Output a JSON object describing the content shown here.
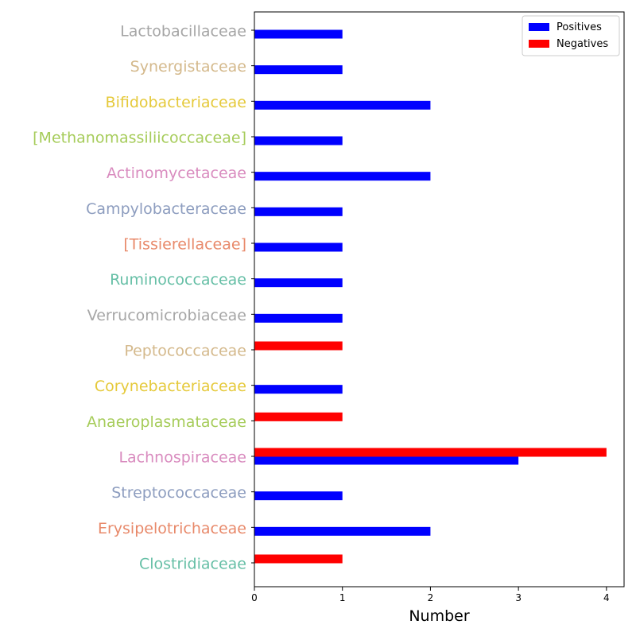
{
  "chart_data": {
    "type": "bar",
    "orientation": "horizontal",
    "categories": [
      "Lactobacillaceae",
      "Synergistaceae",
      "Bifidobacteriaceae",
      "[Methanomassiliicoccaceae]",
      "Actinomycetaceae",
      "Campylobacteraceae",
      "[Tissierellaceae]",
      "Ruminococcaceae",
      "Verrucomicrobiaceae",
      "Peptococcaceae",
      "Corynebacteriaceae",
      "Anaeroplasmataceae",
      "Lachnospiraceae",
      "Streptococcaceae",
      "Erysipelotrichaceae",
      "Clostridiaceae"
    ],
    "category_colors": [
      "#a6a6a6",
      "#d4b98c",
      "#e5c93a",
      "#a6cc5a",
      "#d98cbf",
      "#8d9dbf",
      "#e8896a",
      "#66bfa6",
      "#a6a6a6",
      "#d4b98c",
      "#e5c93a",
      "#a6cc5a",
      "#d98cbf",
      "#8d9dbf",
      "#e8896a",
      "#66bfa6"
    ],
    "series": [
      {
        "name": "Positives",
        "color": "#0000ff",
        "values": [
          1,
          1,
          2,
          1,
          2,
          1,
          1,
          1,
          1,
          0,
          1,
          0,
          3,
          1,
          2,
          0
        ]
      },
      {
        "name": "Negatives",
        "color": "#ff0000",
        "values": [
          0,
          0,
          0,
          0,
          0,
          0,
          0,
          0,
          0,
          1,
          0,
          1,
          4,
          0,
          0,
          1
        ]
      }
    ],
    "xlabel": "Number",
    "xlim": [
      0,
      4.2
    ],
    "xticks": [
      0,
      1,
      2,
      3,
      4
    ],
    "grid": false,
    "legend_position": "top-right"
  }
}
